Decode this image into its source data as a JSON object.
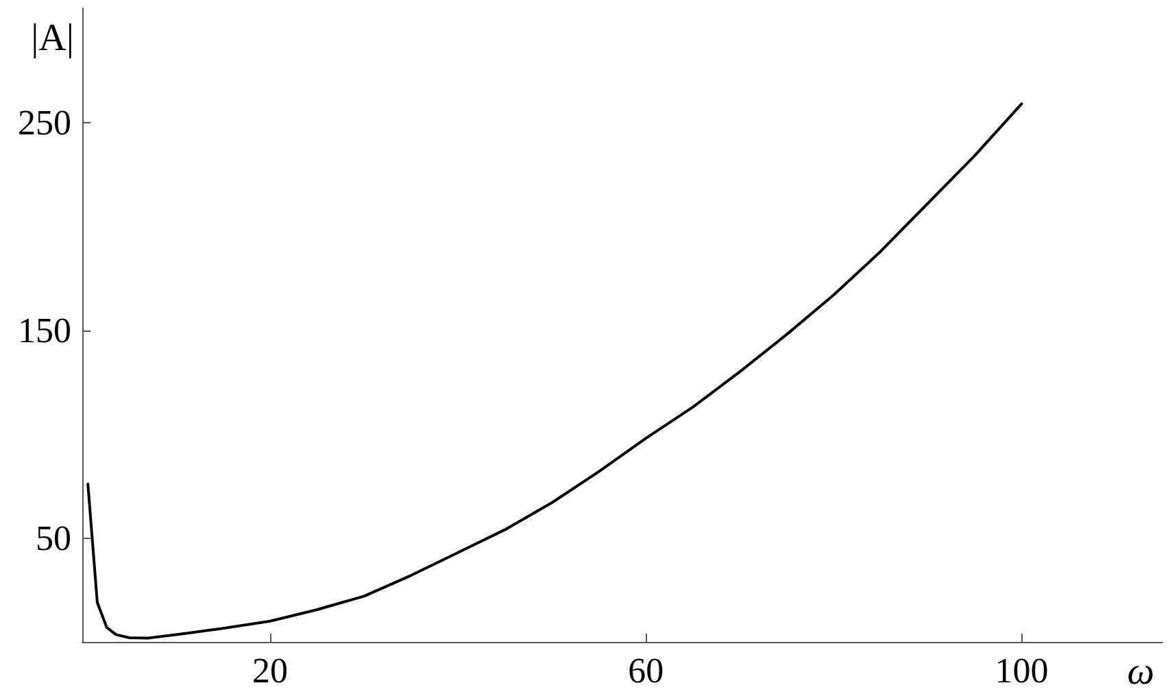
{
  "chart_data": {
    "type": "line",
    "xlabel": "ω",
    "ylabel": "|A|",
    "x": [
      0.6,
      1.6,
      2.6,
      3.6,
      5,
      7,
      10,
      15,
      20,
      25,
      30,
      35,
      40,
      45,
      50,
      55,
      60,
      65,
      70,
      75,
      80,
      85,
      90,
      95,
      100
    ],
    "series": [
      {
        "color": "#000000",
        "values": [
          76,
          19,
          7,
          3.5,
          2,
          1.8,
          3.5,
          6.5,
          10,
          15.5,
          22,
          32,
          43,
          54,
          67,
          82,
          98,
          113,
          130,
          148,
          167,
          188,
          211,
          234,
          259
        ]
      }
    ],
    "xlim": [
      0,
      115
    ],
    "ylim": [
      0,
      305
    ],
    "xticks": [
      20,
      60,
      100
    ],
    "yticks": [
      50,
      150,
      250
    ],
    "grid": false,
    "marker": "none",
    "line_style": "solid"
  }
}
